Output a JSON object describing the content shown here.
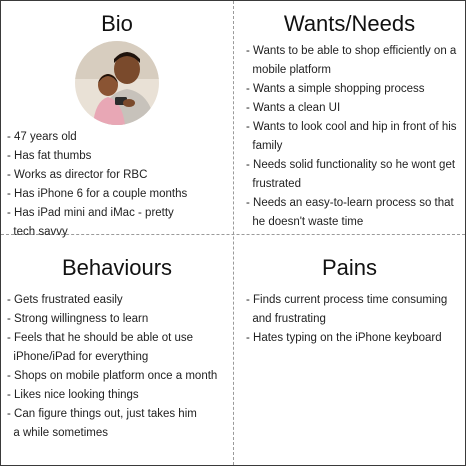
{
  "bio": {
    "title": "Bio",
    "items": [
      "- 47 years old",
      "- Has fat thumbs",
      "- Works as director for RBC",
      "- Has iPhone 6 for a couple months",
      "- Has iPad mini and iMac - pretty",
      "  tech savvy"
    ]
  },
  "wants": {
    "title": "Wants/Needs",
    "items": [
      "- Wants to be able to shop efficiently on a",
      "  mobile platform",
      "- Wants a simple shopping process",
      "- Wants a clean UI",
      "- Wants to look cool and hip in front of his",
      "  family",
      "- Needs solid functionality so he wont get",
      "  frustrated",
      "- Needs an easy-to-learn process so that",
      "  he doesn't waste time"
    ]
  },
  "behaviours": {
    "title": "Behaviours",
    "items": [
      "- Gets frustrated easily",
      "- Strong willingness to learn",
      "- Feels that he should be able ot use",
      "  iPhone/iPad for everything",
      "- Shops on mobile platform once a month",
      "- Likes nice looking things",
      "- Can figure things out, just takes him",
      "  a while sometimes"
    ]
  },
  "pains": {
    "title": "Pains",
    "items": [
      "- Finds current process time consuming",
      "  and frustrating",
      "- Hates typing on the iPhone keyboard"
    ]
  }
}
